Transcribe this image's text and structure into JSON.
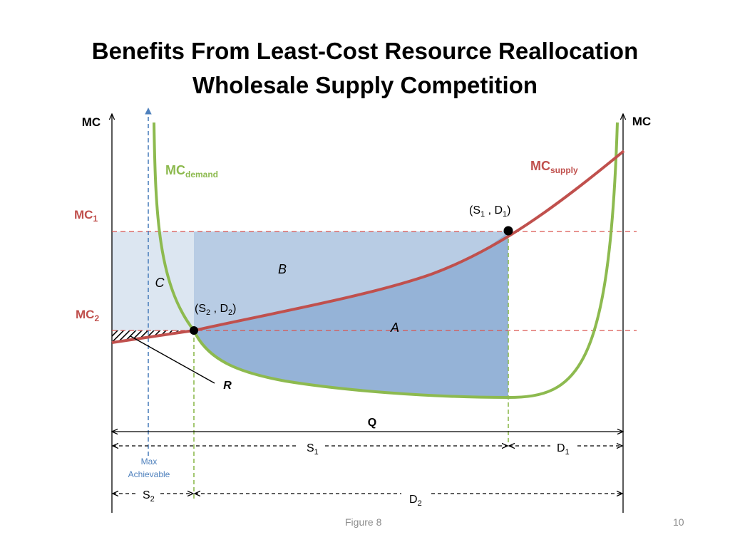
{
  "slide": {
    "title_line1": "Benefits From Least-Cost Resource Reallocation",
    "title_line2": "Wholesale Supply Competition",
    "footer_caption": "Figure 8",
    "page_number": "10"
  },
  "diagram": {
    "left_axis_label": "MC",
    "right_axis_label": "MC",
    "mc1": {
      "base": "MC",
      "sub": "1"
    },
    "mc2": {
      "base": "MC",
      "sub": "2"
    },
    "mc_demand": {
      "base": "MC",
      "sub": "demand"
    },
    "mc_supply": {
      "base": "MC",
      "sub": "supply"
    },
    "point_s1d1": {
      "s": "S",
      "s_sub": "1",
      "d": "D",
      "d_sub": "1"
    },
    "point_s2d2": {
      "s": "S",
      "s_sub": "2",
      "d": "D",
      "d_sub": "2"
    },
    "area_a": "A",
    "area_b": "B",
    "area_c": "C",
    "label_r": "R",
    "label_q": "Q",
    "max_achievable_line1": "Max",
    "max_achievable_line2": "Achievable",
    "s1": {
      "base": "S",
      "sub": "1"
    },
    "d1": {
      "base": "D",
      "sub": "1"
    },
    "s2": {
      "base": "S",
      "sub": "2"
    },
    "d2": {
      "base": "D",
      "sub": "2"
    }
  },
  "colors": {
    "demand_curve": "#8dba4f",
    "supply_curve": "#c0504d",
    "mc_reference_lines": "#d9534f",
    "max_achievable": "#4f81bd",
    "area_a": "#95b3d7",
    "area_b": "#b8cce4",
    "area_c": "#dce6f1"
  }
}
